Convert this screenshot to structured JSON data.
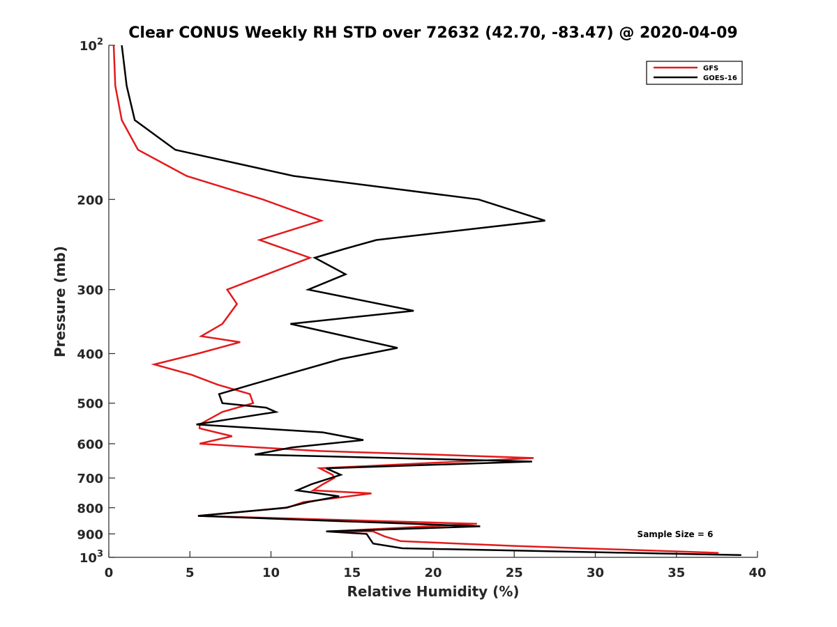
{
  "chart_data": {
    "type": "line",
    "title": "Clear CONUS Weekly RH STD over 72632 (42.70, -83.47) @ 2020-04-09",
    "xlabel": "Relative Humidity (%)",
    "ylabel": "Pressure (mb)",
    "xlim": [
      0,
      40
    ],
    "ylim": [
      100,
      1000
    ],
    "y_scale": "log",
    "y_reversed": true,
    "grid": false,
    "legend_position": "top-right",
    "x_ticks": [
      "0",
      "5",
      "10",
      "15",
      "20",
      "25",
      "30",
      "35",
      "40"
    ],
    "y_ticks": [
      {
        "value": 100,
        "label": "10",
        "exp": "2"
      },
      {
        "value": 200,
        "label": "200",
        "exp": ""
      },
      {
        "value": 300,
        "label": "300",
        "exp": ""
      },
      {
        "value": 400,
        "label": "400",
        "exp": ""
      },
      {
        "value": 500,
        "label": "500",
        "exp": ""
      },
      {
        "value": 600,
        "label": "600",
        "exp": ""
      },
      {
        "value": 700,
        "label": "700",
        "exp": ""
      },
      {
        "value": 800,
        "label": "800",
        "exp": ""
      },
      {
        "value": 900,
        "label": "900",
        "exp": ""
      },
      {
        "value": 1000,
        "label": "10",
        "exp": "3"
      }
    ],
    "annotation": "Sample Size = 6",
    "series": [
      {
        "name": "GFS",
        "color": "#e31a1c",
        "points": [
          [
            0.3,
            100
          ],
          [
            0.4,
            120
          ],
          [
            0.8,
            140
          ],
          [
            1.8,
            160
          ],
          [
            4.8,
            180
          ],
          [
            9.5,
            200
          ],
          [
            13.1,
            220
          ],
          [
            9.3,
            240
          ],
          [
            12.4,
            260
          ],
          [
            7.3,
            300
          ],
          [
            7.9,
            320
          ],
          [
            7.0,
            350
          ],
          [
            5.7,
            370
          ],
          [
            8.1,
            380
          ],
          [
            5.5,
            400
          ],
          [
            2.8,
            420
          ],
          [
            5.1,
            440
          ],
          [
            6.7,
            460
          ],
          [
            8.7,
            480
          ],
          [
            8.9,
            500
          ],
          [
            7.0,
            520
          ],
          [
            5.6,
            550
          ],
          [
            5.6,
            560
          ],
          [
            7.6,
            580
          ],
          [
            5.6,
            600
          ],
          [
            9.2,
            610
          ],
          [
            13.0,
            620
          ],
          [
            20.0,
            630
          ],
          [
            26.2,
            640
          ],
          [
            13.0,
            670
          ],
          [
            13.8,
            690
          ],
          [
            13.9,
            700
          ],
          [
            13.2,
            720
          ],
          [
            12.6,
            740
          ],
          [
            16.2,
            750
          ],
          [
            12.0,
            780
          ],
          [
            11.0,
            800
          ],
          [
            5.5,
            830
          ],
          [
            22.7,
            860
          ],
          [
            13.7,
            890
          ],
          [
            16.3,
            890
          ],
          [
            17.0,
            910
          ],
          [
            18.0,
            930
          ],
          [
            25.0,
            950
          ],
          [
            37.6,
            980
          ]
        ]
      },
      {
        "name": "GOES-16",
        "color": "#000000",
        "points": [
          [
            0.8,
            100
          ],
          [
            1.1,
            120
          ],
          [
            1.6,
            140
          ],
          [
            4.1,
            160
          ],
          [
            11.4,
            180
          ],
          [
            22.8,
            200
          ],
          [
            26.9,
            220
          ],
          [
            16.5,
            240
          ],
          [
            14.5,
            250
          ],
          [
            12.7,
            260
          ],
          [
            14.6,
            280
          ],
          [
            12.3,
            300
          ],
          [
            18.8,
            330
          ],
          [
            11.2,
            350
          ],
          [
            17.8,
            390
          ],
          [
            14.3,
            410
          ],
          [
            10.9,
            440
          ],
          [
            8.8,
            460
          ],
          [
            6.8,
            480
          ],
          [
            7.0,
            500
          ],
          [
            9.7,
            510
          ],
          [
            10.3,
            520
          ],
          [
            5.4,
            550
          ],
          [
            13.2,
            570
          ],
          [
            15.7,
            590
          ],
          [
            11.3,
            610
          ],
          [
            9.0,
            630
          ],
          [
            26.1,
            650
          ],
          [
            13.4,
            670
          ],
          [
            14.3,
            690
          ],
          [
            12.5,
            720
          ],
          [
            11.6,
            740
          ],
          [
            14.2,
            760
          ],
          [
            12.3,
            780
          ],
          [
            10.9,
            800
          ],
          [
            5.5,
            830
          ],
          [
            22.9,
            870
          ],
          [
            13.4,
            890
          ],
          [
            15.9,
            900
          ],
          [
            16.1,
            920
          ],
          [
            16.3,
            940
          ],
          [
            18.1,
            960
          ],
          [
            39.0,
            990
          ]
        ]
      }
    ]
  }
}
